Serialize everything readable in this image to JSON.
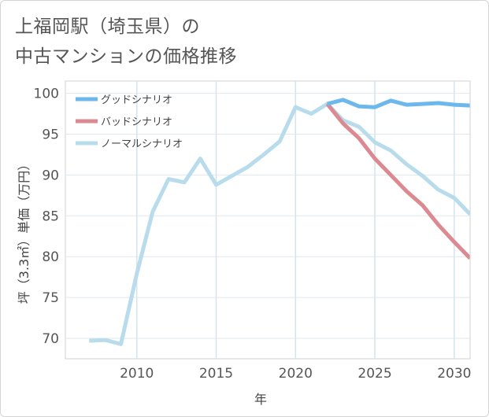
{
  "title_lines": [
    "上福岡駅（埼玉県）の",
    "中古マンションの価格推移"
  ],
  "chart_data": {
    "type": "line",
    "title": "上福岡駅（埼玉県）の中古マンションの価格推移",
    "xlabel": "年",
    "ylabel": "坪（3.3㎡）単価（万円）",
    "xlim": [
      2005.5,
      2031
    ],
    "ylim": [
      67.5,
      101.5
    ],
    "xticks": [
      2010,
      2015,
      2020,
      2025,
      2030
    ],
    "yticks": [
      70,
      75,
      80,
      85,
      90,
      95,
      100
    ],
    "grid": true,
    "legend_position": "top-left",
    "series": [
      {
        "name": "グッドシナリオ",
        "color": "#6cb8ec",
        "x": [
          2022,
          2023,
          2024,
          2025,
          2026,
          2027,
          2028,
          2029,
          2030,
          2031
        ],
        "values": [
          98.7,
          99.2,
          98.4,
          98.3,
          99.1,
          98.6,
          98.7,
          98.8,
          98.6,
          98.5
        ]
      },
      {
        "name": "バッドシナリオ",
        "color": "#dc8a91",
        "x": [
          2022,
          2023,
          2024,
          2025,
          2026,
          2027,
          2028,
          2029,
          2030,
          2031
        ],
        "values": [
          98.7,
          96.3,
          94.5,
          92.0,
          90.0,
          88.0,
          86.3,
          83.9,
          81.8,
          79.8
        ]
      },
      {
        "name": "ノーマルシナリオ",
        "color": "#b8dcec",
        "x": [
          2007,
          2008,
          2009,
          2010,
          2011,
          2012,
          2013,
          2014,
          2015,
          2016,
          2017,
          2018,
          2019,
          2020,
          2021,
          2022,
          2023,
          2024,
          2025,
          2026,
          2027,
          2028,
          2029,
          2030,
          2031
        ],
        "values": [
          69.7,
          69.8,
          69.3,
          77.9,
          85.5,
          89.5,
          89.1,
          92.0,
          88.8,
          89.9,
          91.0,
          92.5,
          94.1,
          98.3,
          97.5,
          98.7,
          96.7,
          95.9,
          94.0,
          93.0,
          91.3,
          89.9,
          88.2,
          87.2,
          85.2
        ]
      }
    ]
  }
}
